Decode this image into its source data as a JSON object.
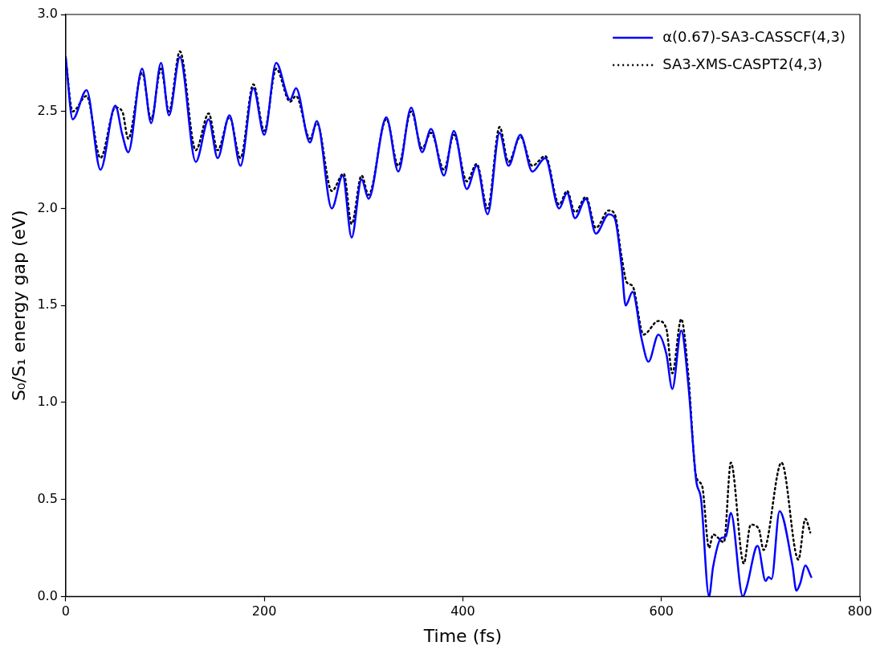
{
  "chart_data": {
    "type": "line",
    "xlabel": "Time (fs)",
    "ylabel": "S₀/S₁ energy gap (eV)",
    "xlim": [
      0,
      800
    ],
    "xticks": [
      0,
      200,
      400,
      600,
      800
    ],
    "ylim": [
      0,
      3
    ],
    "yticks": [
      {
        "value": 0,
        "label": "0.0"
      },
      {
        "value": 0.5,
        "label": "0.5"
      },
      {
        "value": 1,
        "label": "1.0"
      },
      {
        "value": 1.5,
        "label": "1.5"
      },
      {
        "value": 2,
        "label": "2.0"
      },
      {
        "value": 2.5,
        "label": "2.5"
      },
      {
        "value": 3,
        "label": "3.0"
      }
    ],
    "grid": false,
    "legend": "top right",
    "marker": "none",
    "series": [
      {
        "name": "α(0.67)-SA3-CASSCF(4,3)",
        "color": "#0000ff",
        "line_style": "solid",
        "x": [
          0,
          7,
          21,
          35,
          50,
          57,
          63,
          77,
          86,
          96,
          104,
          115,
          131,
          144,
          153,
          165,
          176,
          189,
          200,
          212,
          226,
          232,
          246,
          253,
          268,
          279,
          288,
          298,
          305,
          323,
          335,
          348,
          359,
          368,
          381,
          391,
          404,
          414,
          425,
          437,
          446,
          458,
          470,
          483,
          497,
          505,
          513,
          524,
          534,
          547,
          553,
          560,
          564,
          571,
          580,
          587,
          597,
          605,
          611,
          620,
          627,
          635,
          640,
          648,
          652,
          660,
          665,
          670,
          682,
          686,
          695,
          697,
          705,
          708,
          711,
          719,
          732,
          736,
          740,
          745,
          751
        ],
        "values": [
          2.78,
          2.46,
          2.61,
          2.2,
          2.53,
          2.38,
          2.29,
          2.72,
          2.44,
          2.75,
          2.48,
          2.78,
          2.24,
          2.46,
          2.26,
          2.48,
          2.22,
          2.62,
          2.38,
          2.75,
          2.56,
          2.62,
          2.34,
          2.45,
          2,
          2.17,
          1.85,
          2.15,
          2.05,
          2.47,
          2.19,
          2.52,
          2.29,
          2.41,
          2.17,
          2.4,
          2.1,
          2.22,
          1.97,
          2.39,
          2.22,
          2.38,
          2.19,
          2.26,
          2,
          2.08,
          1.95,
          2.05,
          1.87,
          1.97,
          1.95,
          1.7,
          1.5,
          1.57,
          1.33,
          1.21,
          1.35,
          1.25,
          1.07,
          1.37,
          1.1,
          0.6,
          0.5,
          0,
          0.15,
          0.3,
          0.31,
          0.43,
          0,
          0.05,
          0.25,
          0.26,
          0.08,
          0.1,
          0.09,
          0.44,
          0.16,
          0.03,
          0.07,
          0.16,
          0.1
        ]
      },
      {
        "name": "SA3-XMS-CASPT2(4,3)",
        "color": "#000000",
        "line_style": "dotted",
        "x": [
          0,
          7,
          21,
          35,
          50,
          57,
          63,
          77,
          86,
          96,
          104,
          115,
          131,
          144,
          153,
          165,
          176,
          189,
          200,
          212,
          226,
          232,
          246,
          253,
          268,
          280,
          288,
          298,
          305,
          323,
          335,
          348,
          359,
          368,
          381,
          391,
          404,
          414,
          425,
          437,
          446,
          458,
          470,
          483,
          497,
          505,
          513,
          524,
          534,
          547,
          553,
          560,
          565,
          571,
          582,
          597,
          605,
          611,
          620,
          627,
          635,
          641,
          648,
          652,
          663,
          670,
          683,
          690,
          698,
          703,
          721,
          738,
          745,
          750
        ],
        "values": [
          2.77,
          2.5,
          2.58,
          2.26,
          2.52,
          2.5,
          2.36,
          2.7,
          2.46,
          2.72,
          2.5,
          2.81,
          2.3,
          2.49,
          2.3,
          2.47,
          2.26,
          2.64,
          2.4,
          2.72,
          2.55,
          2.58,
          2.36,
          2.44,
          2.09,
          2.18,
          1.92,
          2.17,
          2.07,
          2.46,
          2.22,
          2.5,
          2.31,
          2.39,
          2.2,
          2.38,
          2.14,
          2.23,
          2,
          2.42,
          2.24,
          2.37,
          2.22,
          2.27,
          2.02,
          2.09,
          1.98,
          2.06,
          1.9,
          1.99,
          1.97,
          1.75,
          1.62,
          1.6,
          1.35,
          1.42,
          1.38,
          1.15,
          1.43,
          1.15,
          0.62,
          0.57,
          0.25,
          0.32,
          0.28,
          0.69,
          0.17,
          0.37,
          0.35,
          0.24,
          0.69,
          0.19,
          0.4,
          0.33
        ]
      }
    ]
  }
}
